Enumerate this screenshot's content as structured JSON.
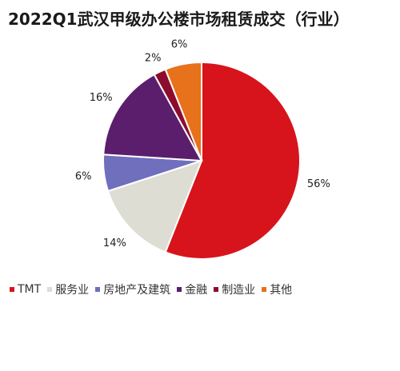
{
  "chart_data": {
    "type": "pie",
    "title": "2022Q1武汉甲级办公楼市场租赁成交（行业）",
    "slices": [
      {
        "label": "TMT",
        "value": 56,
        "value_label": "56%",
        "color": "#d7141c"
      },
      {
        "label": "服务业",
        "value": 14,
        "value_label": "14%",
        "color": "#deddd4"
      },
      {
        "label": "房地产及建筑",
        "value": 6,
        "value_label": "6%",
        "color": "#6f6fbe"
      },
      {
        "label": "金融",
        "value": 16,
        "value_label": "16%",
        "color": "#5b1e6c"
      },
      {
        "label": "制造业",
        "value": 2,
        "value_label": "2%",
        "color": "#8d0c2e"
      },
      {
        "label": "其他",
        "value": 6,
        "value_label": "6%",
        "color": "#e8711b"
      }
    ],
    "start": "12 o'clock",
    "direction": "clockwise",
    "legend_position": "bottom"
  }
}
